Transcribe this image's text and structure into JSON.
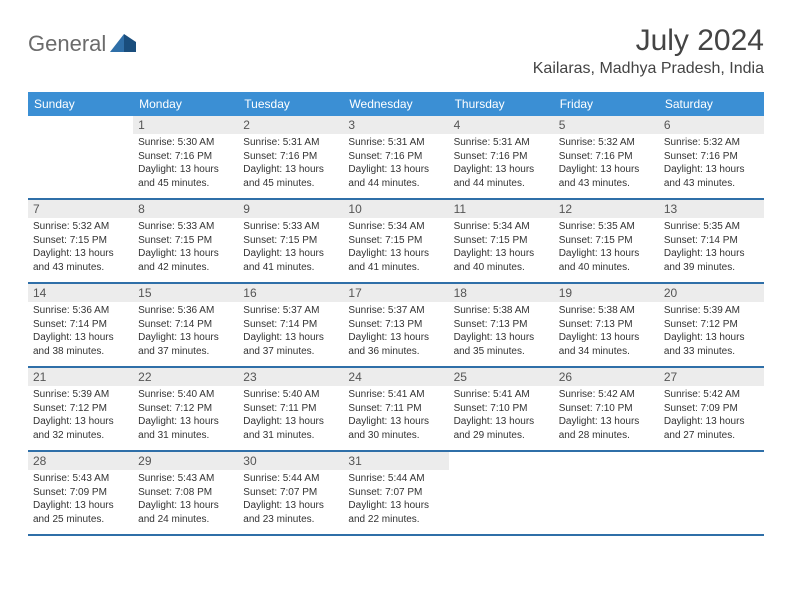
{
  "logo": {
    "text": "General"
  },
  "title": "July 2024",
  "location": "Kailaras, Madhya Pradesh, India",
  "colors": {
    "header_bg": "#3b8fd4",
    "header_text": "#ffffff",
    "row_border": "#2f6fa8",
    "shaded_bg": "#f0f0f0",
    "logo_blue": "#2f6fa8"
  },
  "weekdays": [
    "Sunday",
    "Monday",
    "Tuesday",
    "Wednesday",
    "Thursday",
    "Friday",
    "Saturday"
  ],
  "weeks": [
    [
      null,
      {
        "day": "1",
        "sunrise": "Sunrise: 5:30 AM",
        "sunset": "Sunset: 7:16 PM",
        "daylight1": "Daylight: 13 hours",
        "daylight2": "and 45 minutes."
      },
      {
        "day": "2",
        "sunrise": "Sunrise: 5:31 AM",
        "sunset": "Sunset: 7:16 PM",
        "daylight1": "Daylight: 13 hours",
        "daylight2": "and 45 minutes."
      },
      {
        "day": "3",
        "sunrise": "Sunrise: 5:31 AM",
        "sunset": "Sunset: 7:16 PM",
        "daylight1": "Daylight: 13 hours",
        "daylight2": "and 44 minutes."
      },
      {
        "day": "4",
        "sunrise": "Sunrise: 5:31 AM",
        "sunset": "Sunset: 7:16 PM",
        "daylight1": "Daylight: 13 hours",
        "daylight2": "and 44 minutes."
      },
      {
        "day": "5",
        "sunrise": "Sunrise: 5:32 AM",
        "sunset": "Sunset: 7:16 PM",
        "daylight1": "Daylight: 13 hours",
        "daylight2": "and 43 minutes."
      },
      {
        "day": "6",
        "sunrise": "Sunrise: 5:32 AM",
        "sunset": "Sunset: 7:16 PM",
        "daylight1": "Daylight: 13 hours",
        "daylight2": "and 43 minutes."
      }
    ],
    [
      {
        "day": "7",
        "sunrise": "Sunrise: 5:32 AM",
        "sunset": "Sunset: 7:15 PM",
        "daylight1": "Daylight: 13 hours",
        "daylight2": "and 43 minutes."
      },
      {
        "day": "8",
        "sunrise": "Sunrise: 5:33 AM",
        "sunset": "Sunset: 7:15 PM",
        "daylight1": "Daylight: 13 hours",
        "daylight2": "and 42 minutes."
      },
      {
        "day": "9",
        "sunrise": "Sunrise: 5:33 AM",
        "sunset": "Sunset: 7:15 PM",
        "daylight1": "Daylight: 13 hours",
        "daylight2": "and 41 minutes."
      },
      {
        "day": "10",
        "sunrise": "Sunrise: 5:34 AM",
        "sunset": "Sunset: 7:15 PM",
        "daylight1": "Daylight: 13 hours",
        "daylight2": "and 41 minutes."
      },
      {
        "day": "11",
        "sunrise": "Sunrise: 5:34 AM",
        "sunset": "Sunset: 7:15 PM",
        "daylight1": "Daylight: 13 hours",
        "daylight2": "and 40 minutes."
      },
      {
        "day": "12",
        "sunrise": "Sunrise: 5:35 AM",
        "sunset": "Sunset: 7:15 PM",
        "daylight1": "Daylight: 13 hours",
        "daylight2": "and 40 minutes."
      },
      {
        "day": "13",
        "sunrise": "Sunrise: 5:35 AM",
        "sunset": "Sunset: 7:14 PM",
        "daylight1": "Daylight: 13 hours",
        "daylight2": "and 39 minutes."
      }
    ],
    [
      {
        "day": "14",
        "sunrise": "Sunrise: 5:36 AM",
        "sunset": "Sunset: 7:14 PM",
        "daylight1": "Daylight: 13 hours",
        "daylight2": "and 38 minutes."
      },
      {
        "day": "15",
        "sunrise": "Sunrise: 5:36 AM",
        "sunset": "Sunset: 7:14 PM",
        "daylight1": "Daylight: 13 hours",
        "daylight2": "and 37 minutes."
      },
      {
        "day": "16",
        "sunrise": "Sunrise: 5:37 AM",
        "sunset": "Sunset: 7:14 PM",
        "daylight1": "Daylight: 13 hours",
        "daylight2": "and 37 minutes."
      },
      {
        "day": "17",
        "sunrise": "Sunrise: 5:37 AM",
        "sunset": "Sunset: 7:13 PM",
        "daylight1": "Daylight: 13 hours",
        "daylight2": "and 36 minutes."
      },
      {
        "day": "18",
        "sunrise": "Sunrise: 5:38 AM",
        "sunset": "Sunset: 7:13 PM",
        "daylight1": "Daylight: 13 hours",
        "daylight2": "and 35 minutes."
      },
      {
        "day": "19",
        "sunrise": "Sunrise: 5:38 AM",
        "sunset": "Sunset: 7:13 PM",
        "daylight1": "Daylight: 13 hours",
        "daylight2": "and 34 minutes."
      },
      {
        "day": "20",
        "sunrise": "Sunrise: 5:39 AM",
        "sunset": "Sunset: 7:12 PM",
        "daylight1": "Daylight: 13 hours",
        "daylight2": "and 33 minutes."
      }
    ],
    [
      {
        "day": "21",
        "sunrise": "Sunrise: 5:39 AM",
        "sunset": "Sunset: 7:12 PM",
        "daylight1": "Daylight: 13 hours",
        "daylight2": "and 32 minutes."
      },
      {
        "day": "22",
        "sunrise": "Sunrise: 5:40 AM",
        "sunset": "Sunset: 7:12 PM",
        "daylight1": "Daylight: 13 hours",
        "daylight2": "and 31 minutes."
      },
      {
        "day": "23",
        "sunrise": "Sunrise: 5:40 AM",
        "sunset": "Sunset: 7:11 PM",
        "daylight1": "Daylight: 13 hours",
        "daylight2": "and 31 minutes."
      },
      {
        "day": "24",
        "sunrise": "Sunrise: 5:41 AM",
        "sunset": "Sunset: 7:11 PM",
        "daylight1": "Daylight: 13 hours",
        "daylight2": "and 30 minutes."
      },
      {
        "day": "25",
        "sunrise": "Sunrise: 5:41 AM",
        "sunset": "Sunset: 7:10 PM",
        "daylight1": "Daylight: 13 hours",
        "daylight2": "and 29 minutes."
      },
      {
        "day": "26",
        "sunrise": "Sunrise: 5:42 AM",
        "sunset": "Sunset: 7:10 PM",
        "daylight1": "Daylight: 13 hours",
        "daylight2": "and 28 minutes."
      },
      {
        "day": "27",
        "sunrise": "Sunrise: 5:42 AM",
        "sunset": "Sunset: 7:09 PM",
        "daylight1": "Daylight: 13 hours",
        "daylight2": "and 27 minutes."
      }
    ],
    [
      {
        "day": "28",
        "sunrise": "Sunrise: 5:43 AM",
        "sunset": "Sunset: 7:09 PM",
        "daylight1": "Daylight: 13 hours",
        "daylight2": "and 25 minutes."
      },
      {
        "day": "29",
        "sunrise": "Sunrise: 5:43 AM",
        "sunset": "Sunset: 7:08 PM",
        "daylight1": "Daylight: 13 hours",
        "daylight2": "and 24 minutes."
      },
      {
        "day": "30",
        "sunrise": "Sunrise: 5:44 AM",
        "sunset": "Sunset: 7:07 PM",
        "daylight1": "Daylight: 13 hours",
        "daylight2": "and 23 minutes."
      },
      {
        "day": "31",
        "sunrise": "Sunrise: 5:44 AM",
        "sunset": "Sunset: 7:07 PM",
        "daylight1": "Daylight: 13 hours",
        "daylight2": "and 22 minutes."
      },
      null,
      null,
      null
    ]
  ]
}
